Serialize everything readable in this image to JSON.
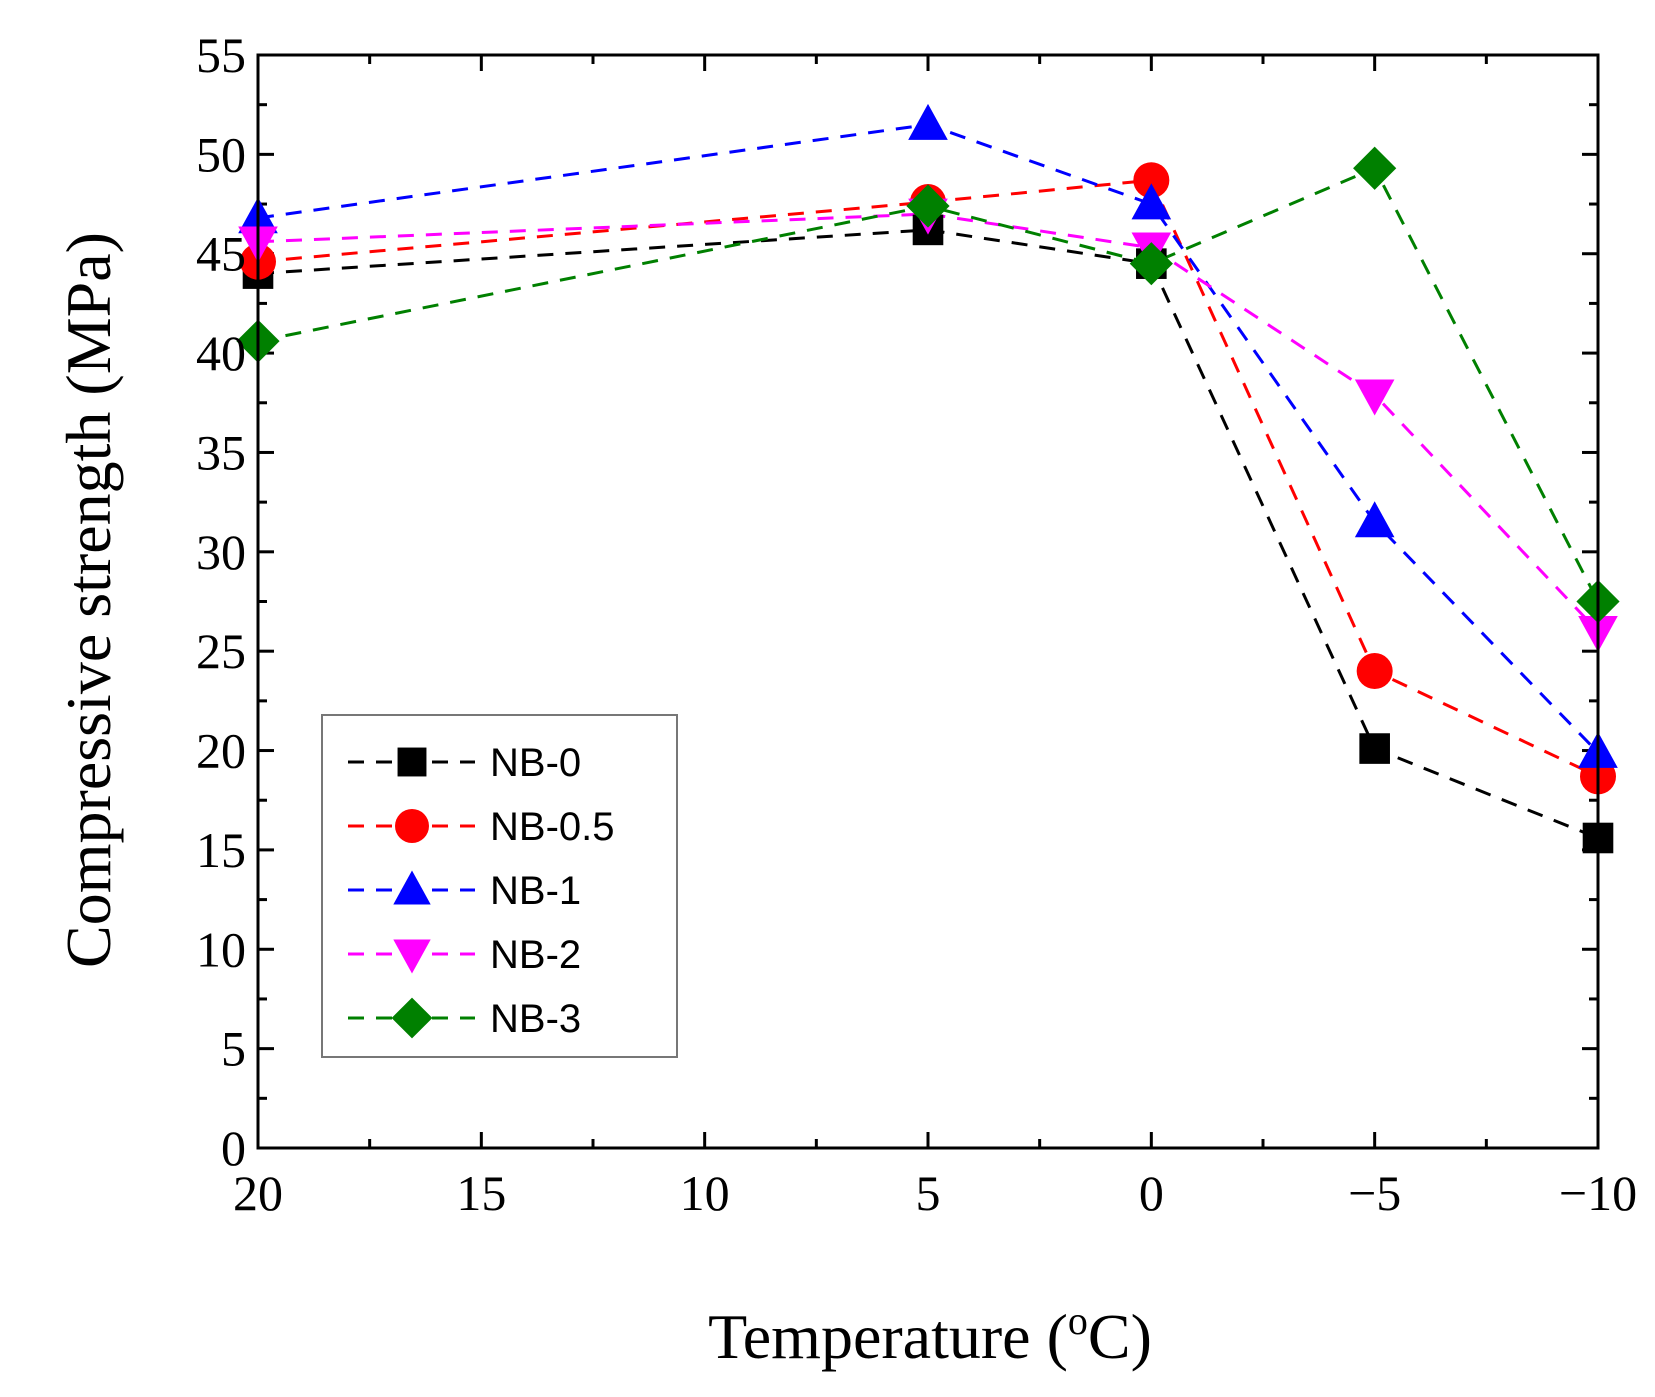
{
  "chart_data": {
    "type": "line",
    "xlabel": "Temperature (",
    "xlabel_sup": "o",
    "xlabel_suffix": "C)",
    "ylabel": "Compressive strength (MPa)",
    "x": [
      20,
      5,
      0,
      -5,
      -10
    ],
    "xlim": [
      20,
      -10
    ],
    "ylim": [
      0,
      55
    ],
    "xticks": [
      20,
      15,
      10,
      5,
      0,
      -5,
      -10
    ],
    "xtick_labels": [
      "20",
      "15",
      "10",
      "5",
      "0",
      "−5",
      "−10"
    ],
    "yticks": [
      0,
      5,
      10,
      15,
      20,
      25,
      30,
      35,
      40,
      45,
      50,
      55
    ],
    "ytick_labels": [
      "0",
      "5",
      "10",
      "15",
      "20",
      "25",
      "30",
      "35",
      "40",
      "45",
      "50",
      "55"
    ],
    "legend_position": "lower-left",
    "series": [
      {
        "name": "NB-0",
        "color": "#000000",
        "marker": "square",
        "values": [
          44.0,
          46.2,
          44.5,
          20.1,
          15.6
        ]
      },
      {
        "name": "NB-0.5",
        "color": "#ff0000",
        "marker": "circle",
        "values": [
          44.6,
          47.6,
          48.7,
          24.0,
          18.7
        ]
      },
      {
        "name": "NB-1",
        "color": "#0000ff",
        "marker": "triangle-up",
        "values": [
          46.8,
          51.5,
          47.5,
          31.5,
          19.9
        ]
      },
      {
        "name": "NB-2",
        "color": "#ff00ff",
        "marker": "triangle-down",
        "values": [
          45.6,
          47.0,
          45.3,
          37.9,
          26.0
        ]
      },
      {
        "name": "NB-3",
        "color": "#008000",
        "marker": "diamond",
        "values": [
          40.6,
          47.4,
          44.5,
          49.3,
          27.5
        ]
      }
    ]
  }
}
